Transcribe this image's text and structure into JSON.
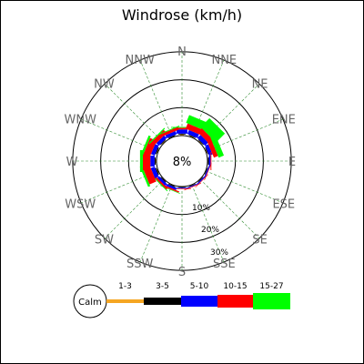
{
  "chart_data": {
    "type": "windrose",
    "title": "Windrose (km/h)",
    "calm_label": "Calm",
    "calm_value_label": "8%",
    "ring_labels": [
      "10%",
      "20%",
      "30%"
    ],
    "ring_values": [
      10,
      20,
      30
    ],
    "directions": [
      "N",
      "NNE",
      "NE",
      "ENE",
      "E",
      "ESE",
      "SE",
      "SSE",
      "S",
      "SSW",
      "SW",
      "WSW",
      "W",
      "WNW",
      "NW",
      "NNW"
    ],
    "speed_bins": [
      "1-3",
      "3-5",
      "5-10",
      "10-15",
      "15-27"
    ],
    "colors": [
      "#f5a623",
      "#000000",
      "#0000ff",
      "#ff0000",
      "#00ff00"
    ],
    "frequencies": {
      "N": [
        0.4,
        0.3,
        1.5,
        0.6,
        0.3
      ],
      "NNE": [
        0.3,
        0.3,
        1.5,
        2.0,
        3.0
      ],
      "NE": [
        0.3,
        0.3,
        1.6,
        2.0,
        4.5
      ],
      "ENE": [
        0.3,
        0.3,
        1.3,
        1.6,
        2.0
      ],
      "E": [
        0.2,
        0.3,
        0.6,
        0.3,
        0.0
      ],
      "ESE": [
        0.2,
        0.2,
        0.4,
        0.2,
        0.0
      ],
      "SE": [
        0.2,
        0.2,
        0.4,
        0.2,
        0.0
      ],
      "SSE": [
        0.2,
        0.2,
        0.3,
        0.2,
        0.0
      ],
      "S": [
        0.2,
        0.2,
        0.3,
        0.2,
        0.0
      ],
      "SSW": [
        0.2,
        0.3,
        0.8,
        0.5,
        0.2
      ],
      "SW": [
        0.2,
        0.3,
        0.9,
        0.6,
        0.3
      ],
      "WSW": [
        0.3,
        0.4,
        1.5,
        2.6,
        0.8
      ],
      "W": [
        0.3,
        0.4,
        1.5,
        2.7,
        1.0
      ],
      "WNW": [
        0.3,
        0.4,
        1.4,
        2.5,
        0.8
      ],
      "NW": [
        0.3,
        0.3,
        1.3,
        1.5,
        0.4
      ],
      "NNW": [
        0.2,
        0.3,
        1.2,
        1.0,
        0.3
      ]
    }
  }
}
